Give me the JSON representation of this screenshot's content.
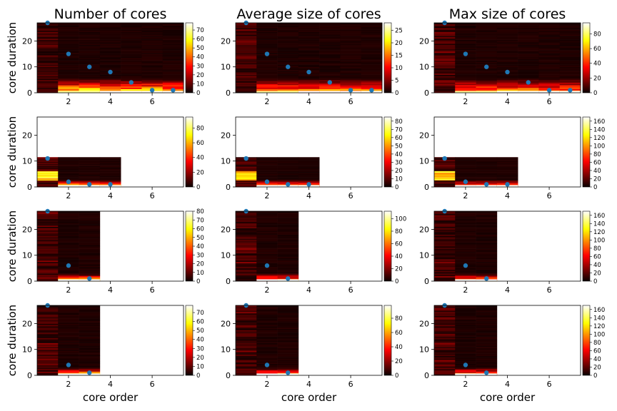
{
  "chart_data": {
    "type": "heatmap",
    "column_titles": [
      "Number of cores",
      "Average size of cores",
      "Max size of cores"
    ],
    "ylabel": "core duration",
    "xlabel": "core order",
    "xlim": [
      0.5,
      7.5
    ],
    "ylim": [
      0,
      27
    ],
    "xticks": [
      2,
      4,
      6
    ],
    "yticks": [
      0,
      10,
      20
    ],
    "colormap": "hot",
    "rows": [
      {
        "max_order": 7,
        "points": [
          [
            1,
            27
          ],
          [
            2,
            15
          ],
          [
            3,
            10
          ],
          [
            4,
            8
          ],
          [
            5,
            4
          ],
          [
            6,
            1
          ],
          [
            7,
            1
          ]
        ],
        "panels": [
          {
            "vmax": 78,
            "cbar_ticks": [
              0,
              10,
              20,
              30,
              40,
              50,
              60,
              70
            ]
          },
          {
            "vmax": 28,
            "cbar_ticks": [
              0,
              5,
              10,
              15,
              20,
              25
            ]
          },
          {
            "vmax": 95,
            "cbar_ticks": [
              0,
              20,
              40,
              60,
              80
            ]
          }
        ]
      },
      {
        "max_order": 4,
        "points": [
          [
            1,
            11
          ],
          [
            2,
            2
          ],
          [
            3,
            1
          ],
          [
            4,
            1
          ]
        ],
        "panels": [
          {
            "vmax": 95,
            "cbar_ticks": [
              0,
              20,
              40,
              60,
              80
            ]
          },
          {
            "vmax": 85,
            "cbar_ticks": [
              0,
              10,
              20,
              30,
              40,
              50,
              60,
              70,
              80
            ]
          },
          {
            "vmax": 170,
            "cbar_ticks": [
              0,
              20,
              40,
              60,
              80,
              100,
              120,
              140,
              160
            ]
          }
        ]
      },
      {
        "max_order": 3,
        "points": [
          [
            1,
            27
          ],
          [
            2,
            6
          ],
          [
            3,
            1
          ]
        ],
        "panels": [
          {
            "vmax": 80,
            "cbar_ticks": [
              0,
              10,
              20,
              30,
              40,
              50,
              60,
              70,
              80
            ]
          },
          {
            "vmax": 112,
            "cbar_ticks": [
              0,
              20,
              40,
              60,
              80,
              100
            ]
          },
          {
            "vmax": 170,
            "cbar_ticks": [
              0,
              20,
              40,
              60,
              80,
              100,
              120,
              140,
              160
            ]
          }
        ]
      },
      {
        "max_order": 3,
        "points": [
          [
            1,
            27
          ],
          [
            2,
            4
          ],
          [
            3,
            1
          ]
        ],
        "panels": [
          {
            "vmax": 78,
            "cbar_ticks": [
              0,
              10,
              20,
              30,
              40,
              50,
              60,
              70
            ]
          },
          {
            "vmax": 98,
            "cbar_ticks": [
              0,
              20,
              40,
              60,
              80
            ]
          },
          {
            "vmax": 170,
            "cbar_ticks": [
              0,
              20,
              40,
              60,
              80,
              100,
              120,
              140,
              160
            ]
          }
        ]
      }
    ]
  }
}
